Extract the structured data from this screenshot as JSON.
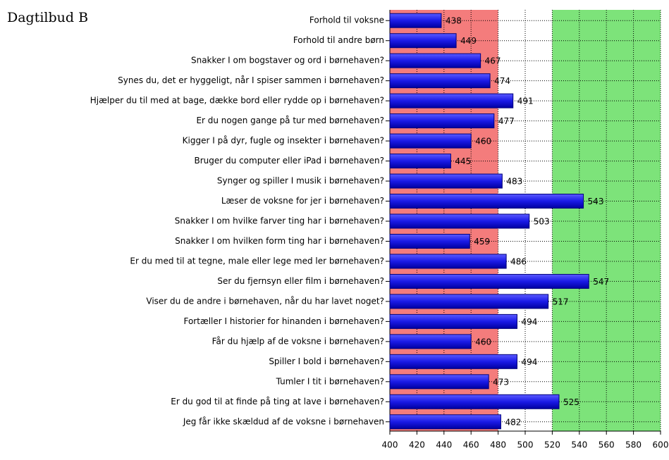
{
  "chart_data": {
    "type": "barh",
    "title": "Dagtilbud B",
    "categories": [
      "Forhold til voksne",
      "Forhold til andre børn",
      "Snakker I om bogstaver og ord i børnehaven?",
      "Synes du, det er hyggeligt, når I spiser sammen i børnehaven?",
      "Hjælper du til med at bage, dække bord eller rydde op i børnehaven?",
      "Er du nogen gange på tur med børnehaven?",
      "Kigger I på dyr, fugle og insekter i børnehaven?",
      "Bruger du computer eller iPad i børnehaven?",
      "Synger og spiller I musik i børnehaven?",
      "Læser de voksne for jer i børnehaven?",
      "Snakker I om hvilke farver ting har i børnehaven?",
      "Snakker I om hvilken form ting har i børnehaven?",
      "Er du med til at tegne, male eller lege med ler børnehaven?",
      "Ser du fjernsyn eller film i børnehaven?",
      "Viser du de andre i børnehaven, når du har lavet noget?",
      "Fortæller I historier for hinanden i børnehaven?",
      "Får du hjælp af de voksne i børnehaven?",
      "Spiller I bold i børnehaven?",
      "Tumler I tit i børnehaven?",
      "Er du god til at finde på ting at lave i børnehaven?",
      "Jeg får ikke skældud af de voksne i børnehaven"
    ],
    "values": [
      438,
      449,
      467,
      474,
      491,
      477,
      460,
      445,
      483,
      543,
      503,
      459,
      486,
      547,
      517,
      494,
      460,
      494,
      473,
      525,
      482
    ],
    "color": "#1a1ae6",
    "xlim": [
      400,
      600
    ],
    "xticks": [
      400,
      420,
      440,
      460,
      480,
      500,
      520,
      540,
      560,
      580,
      600
    ],
    "bands": [
      {
        "from": 400,
        "to": 480,
        "color": "#f47c7c"
      },
      {
        "from": 520,
        "to": 600,
        "color": "#7de37a"
      }
    ],
    "grid": true
  }
}
